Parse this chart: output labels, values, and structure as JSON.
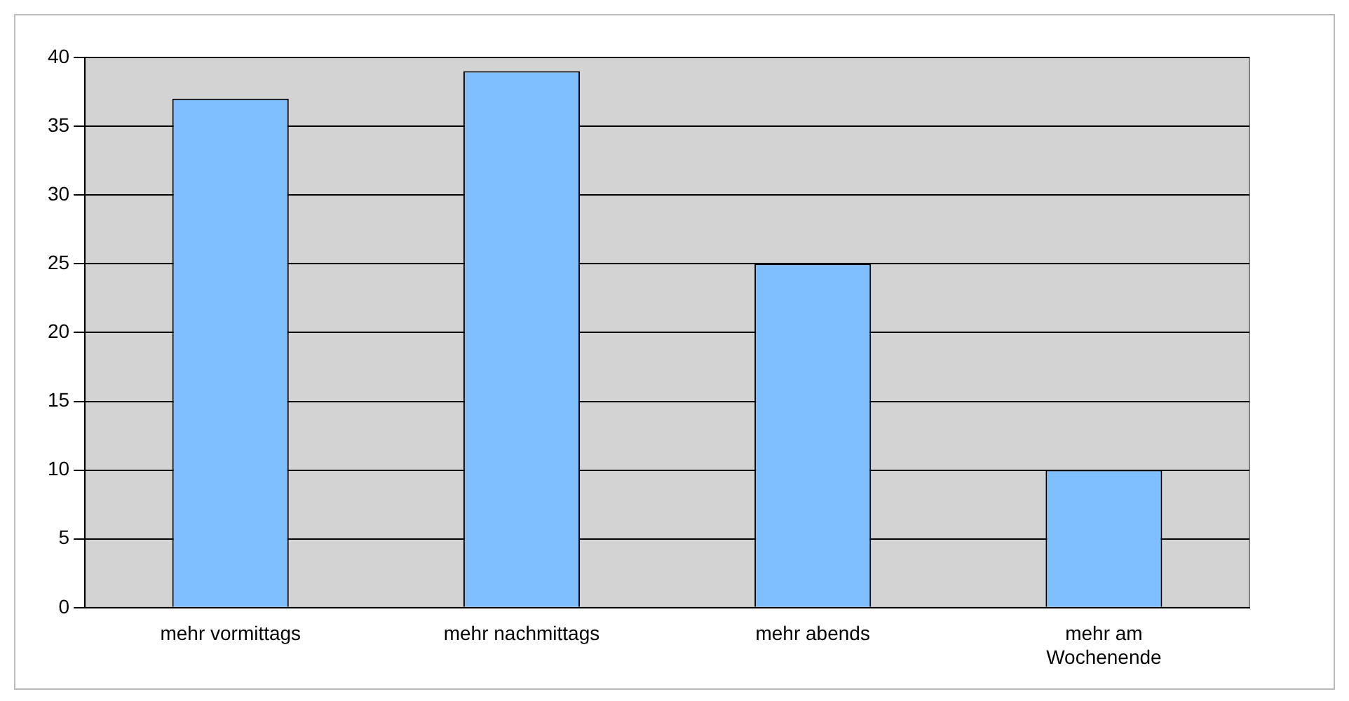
{
  "chart_data": {
    "type": "bar",
    "categories": [
      "mehr vormittags",
      "mehr nachmittags",
      "mehr abends",
      "mehr am Wochenende"
    ],
    "values": [
      37,
      39,
      25,
      10
    ],
    "color": "#80bfff",
    "ylim": [
      0,
      40
    ],
    "yticks": [
      0,
      5,
      10,
      15,
      20,
      25,
      30,
      35,
      40
    ],
    "grid": "y",
    "legend": false
  }
}
